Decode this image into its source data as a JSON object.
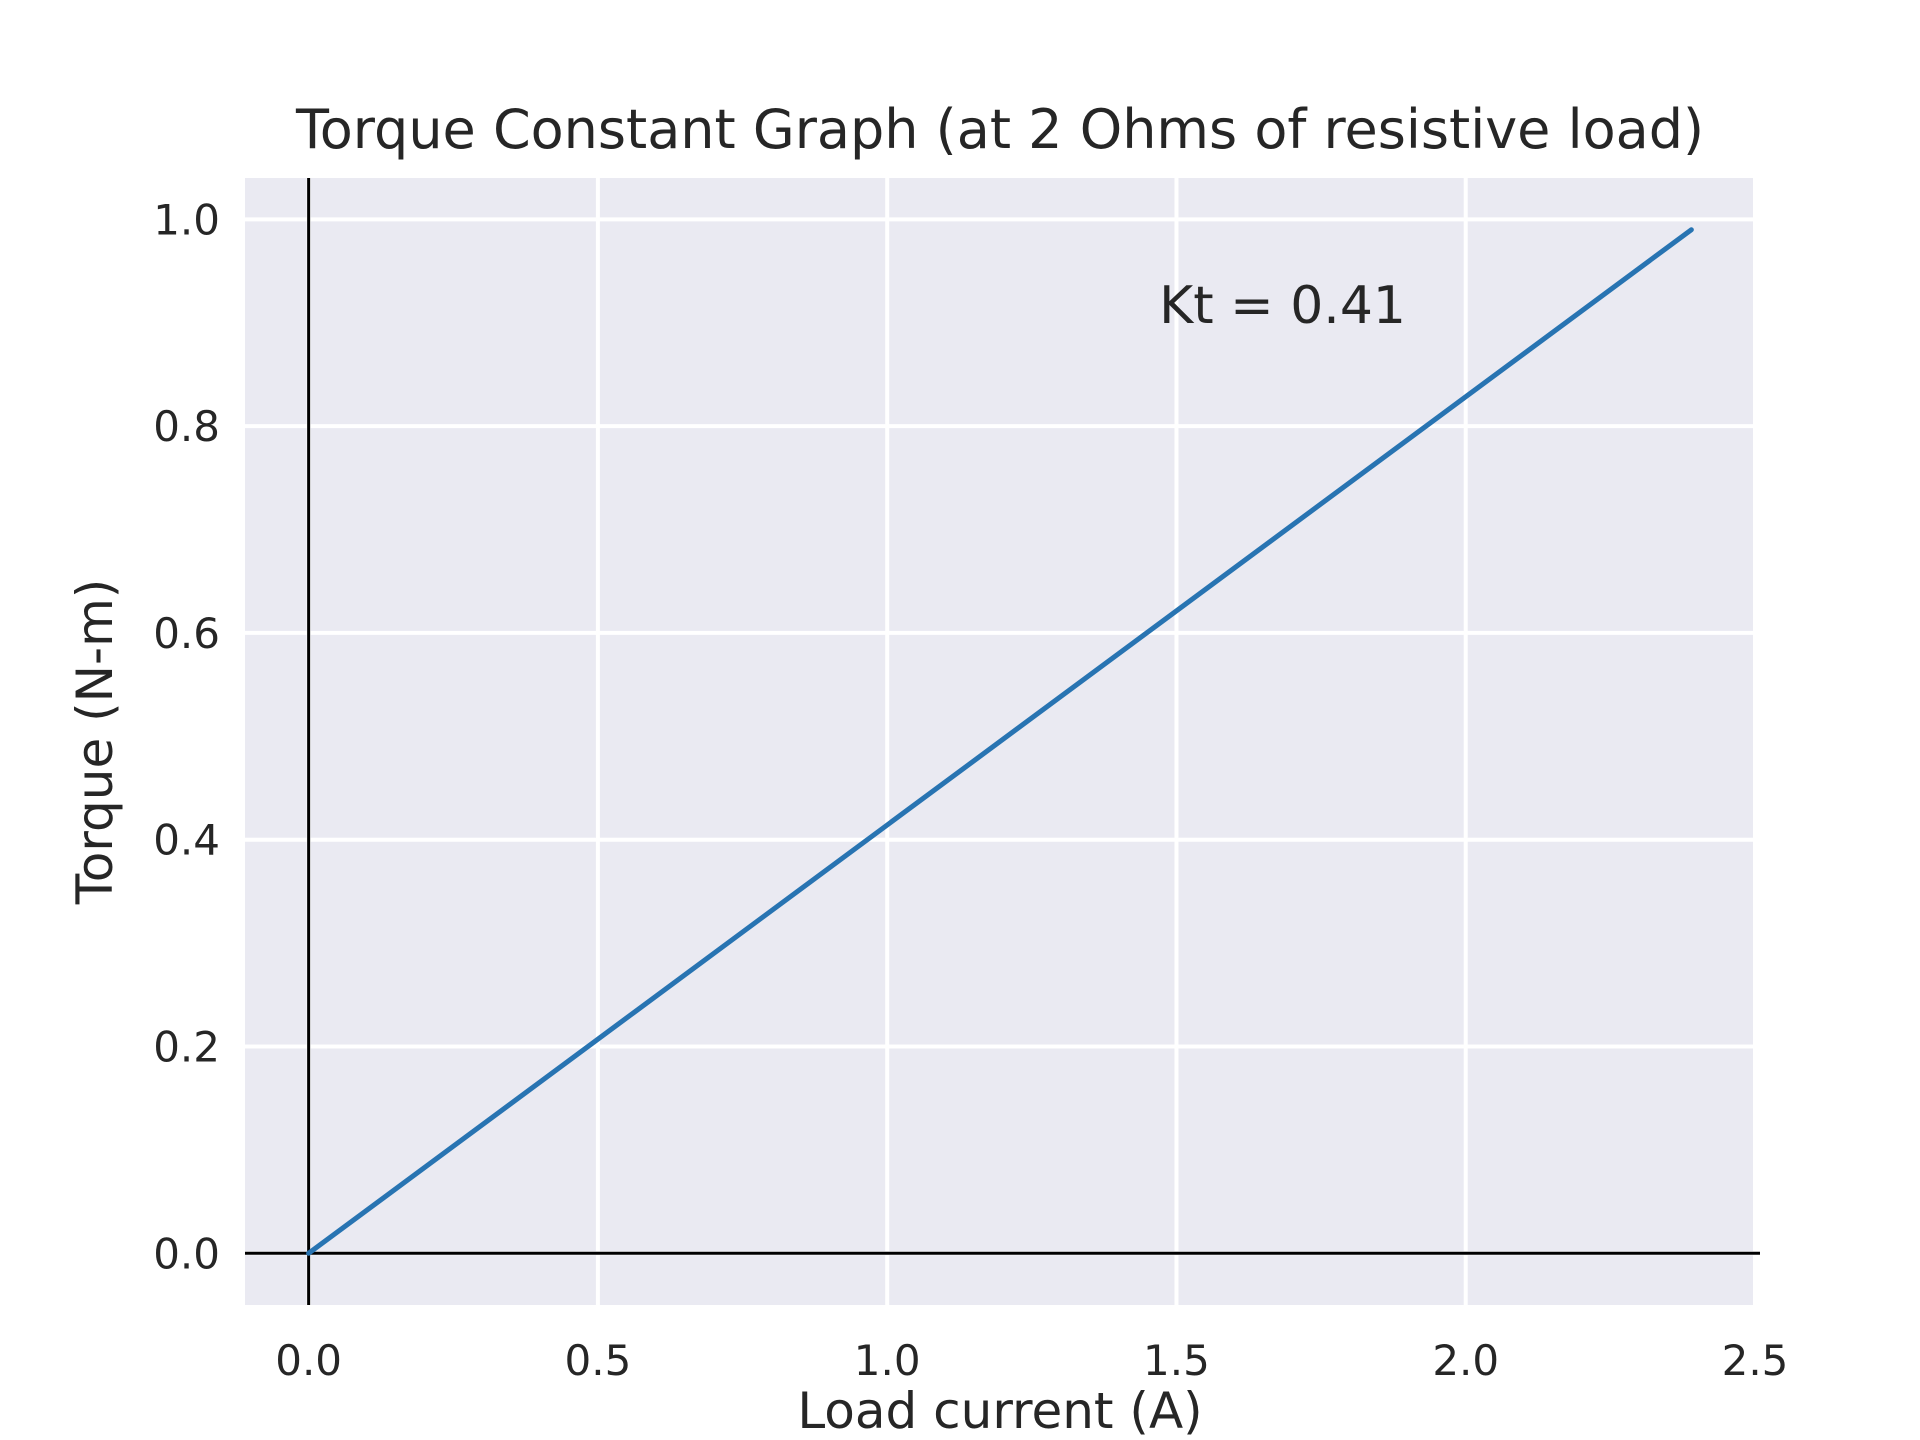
{
  "chart_data": {
    "type": "line",
    "title": "Torque Constant Graph (at 2 Ohms of resistive load)",
    "xlabel": "Load current (A)",
    "ylabel": "Torque (N-m)",
    "xlim": [
      -0.11,
      2.5
    ],
    "ylim": [
      -0.05,
      1.04
    ],
    "xticks": [
      0.0,
      0.5,
      1.0,
      1.5,
      2.0,
      2.5
    ],
    "yticks": [
      0.0,
      0.2,
      0.4,
      0.6,
      0.8,
      1.0
    ],
    "xtick_labels": [
      "0.0",
      "0.5",
      "1.0",
      "1.5",
      "2.0",
      "2.5"
    ],
    "ytick_labels": [
      "0.0",
      "0.2",
      "0.4",
      "0.6",
      "0.8",
      "1.0"
    ],
    "grid": true,
    "reference_lines": {
      "x": 0,
      "y": 0
    },
    "series": [
      {
        "x": [
          0.0,
          2.39
        ],
        "y": [
          0.0,
          0.99
        ],
        "color": "#2874b2"
      }
    ],
    "annotation": {
      "text": "Kt = 0.41",
      "x": 1.47,
      "y": 0.9
    },
    "colors": {
      "plot_background": "#eaeaf2",
      "grid": "#ffffff",
      "reference_line": "#000000",
      "text": "#262626"
    }
  }
}
